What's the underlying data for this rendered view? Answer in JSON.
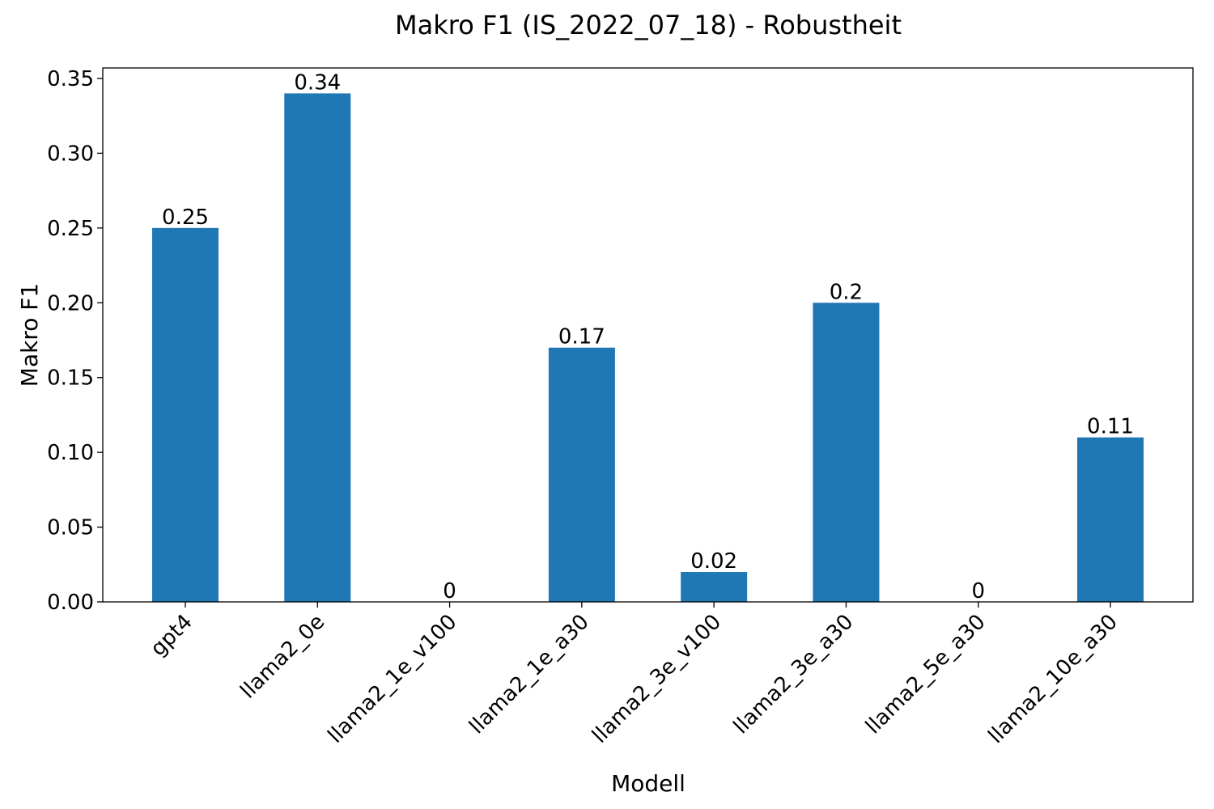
{
  "chart_data": {
    "type": "bar",
    "title": "Makro F1 (IS_2022_07_18) - Robustheit",
    "xlabel": "Modell",
    "ylabel": "Makro F1",
    "categories": [
      "gpt4",
      "llama2_0e",
      "llama2_1e_v100",
      "llama2_1e_a30",
      "llama2_3e_v100",
      "llama2_3e_a30",
      "llama2_5e_a30",
      "llama2_10e_a30"
    ],
    "values": [
      0.25,
      0.34,
      0,
      0.17,
      0.02,
      0.2,
      0,
      0.11
    ],
    "value_labels": [
      "0.25",
      "0.34",
      "0",
      "0.17",
      "0.02",
      "0.2",
      "0",
      "0.11"
    ],
    "yticks": [
      0.0,
      0.05,
      0.1,
      0.15,
      0.2,
      0.25,
      0.3,
      0.35
    ],
    "ytick_labels": [
      "0.00",
      "0.05",
      "0.10",
      "0.15",
      "0.20",
      "0.25",
      "0.30",
      "0.35"
    ],
    "ylim": [
      0,
      0.357
    ],
    "grid": false,
    "legend": "none",
    "bar_color": "#1f77b4"
  }
}
